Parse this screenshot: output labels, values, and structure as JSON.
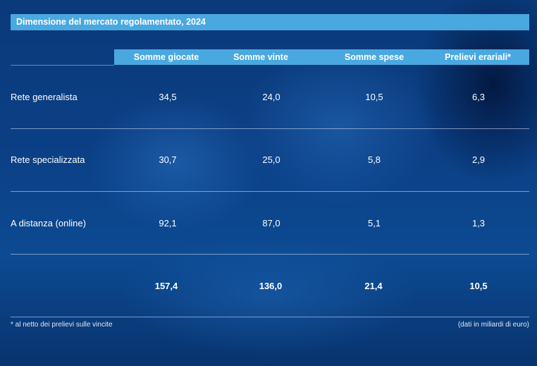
{
  "title": "Dimensione del mercato regolamentato, 2024",
  "columns": [
    "Somme giocate",
    "Somme vinte",
    "Somme spese",
    "Prelievi erariali*"
  ],
  "rows": [
    {
      "label": "Rete generalista",
      "values": [
        "34,5",
        "24,0",
        "10,5",
        "6,3"
      ]
    },
    {
      "label": "Rete specializzata",
      "values": [
        "30,7",
        "25,0",
        "5,8",
        "2,9"
      ]
    },
    {
      "label": "A distanza (online)",
      "values": [
        "92,1",
        "87,0",
        "5,1",
        "1,3"
      ]
    }
  ],
  "totals": [
    "157,4",
    "136,0",
    "21,4",
    "10,5"
  ],
  "footnote": "* al netto dei prelievi sulle vincite",
  "units": "(dati in miliardi di euro)"
}
